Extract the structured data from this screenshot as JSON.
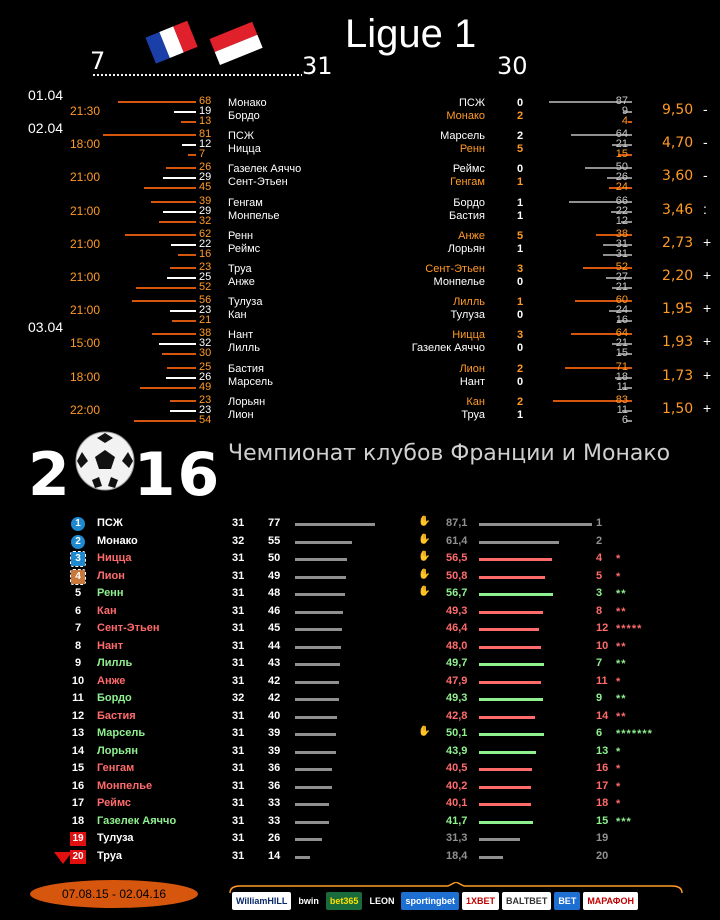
{
  "header": {
    "title": "Ligue 1",
    "round_left": "7",
    "round_mid": "31",
    "round_right": "30",
    "flag_icons": [
      "france-flag-icon",
      "monaco-flag-icon"
    ]
  },
  "dates": [
    {
      "label": "01.04",
      "row": 0
    },
    {
      "label": "02.04",
      "row": 1
    },
    {
      "label": "03.04",
      "row": 7
    }
  ],
  "matches": [
    {
      "time": "21:30",
      "home": "Монако",
      "away": "Бордо",
      "l": [
        "68",
        "19",
        "13"
      ],
      "home_r": "ПСЖ",
      "away_r": "Монако",
      "sh": "0",
      "sa": "2",
      "hl_home": false,
      "hl_away": true,
      "r": [
        "87",
        "9",
        "4"
      ],
      "odd": "9,50",
      "sign": "-"
    },
    {
      "time": "18:00",
      "home": "ПСЖ",
      "away": "Ницца",
      "l": [
        "81",
        "12",
        "7"
      ],
      "home_r": "Марсель",
      "away_r": "Ренн",
      "sh": "2",
      "sa": "5",
      "hl_home": false,
      "hl_away": true,
      "r": [
        "64",
        "21",
        "15"
      ],
      "odd": "4,70",
      "sign": "-"
    },
    {
      "time": "21:00",
      "home": "Газелек Аяччо",
      "away": "Сент-Этьен",
      "l": [
        "26",
        "29",
        "45"
      ],
      "home_r": "Реймс",
      "away_r": "Генгам",
      "sh": "0",
      "sa": "1",
      "hl_home": false,
      "hl_away": true,
      "r": [
        "50",
        "26",
        "24"
      ],
      "odd": "3,60",
      "sign": "-"
    },
    {
      "time": "21:00",
      "home": "Генгам",
      "away": "Монпелье",
      "l": [
        "39",
        "29",
        "32"
      ],
      "home_r": "Бордо",
      "away_r": "Бастия",
      "sh": "1",
      "sa": "1",
      "hl_home": false,
      "hl_away": false,
      "r": [
        "66",
        "22",
        "12"
      ],
      "odd": "3,46",
      "sign": ":"
    },
    {
      "time": "21:00",
      "home": "Ренн",
      "away": "Реймс",
      "l": [
        "62",
        "22",
        "16"
      ],
      "home_r": "Анже",
      "away_r": "Лорьян",
      "sh": "5",
      "sa": "1",
      "hl_home": true,
      "hl_away": false,
      "r": [
        "38",
        "31",
        "31"
      ],
      "odd": "2,73",
      "sign": "+"
    },
    {
      "time": "21:00",
      "home": "Труа",
      "away": "Анже",
      "l": [
        "23",
        "25",
        "52"
      ],
      "home_r": "Сент-Этьен",
      "away_r": "Монпелье",
      "sh": "3",
      "sa": "0",
      "hl_home": true,
      "hl_away": false,
      "r": [
        "52",
        "27",
        "21"
      ],
      "odd": "2,20",
      "sign": "+"
    },
    {
      "time": "21:00",
      "home": "Тулуза",
      "away": "Кан",
      "l": [
        "56",
        "23",
        "21"
      ],
      "home_r": "Лилль",
      "away_r": "Тулуза",
      "sh": "1",
      "sa": "0",
      "hl_home": true,
      "hl_away": false,
      "r": [
        "60",
        "24",
        "16"
      ],
      "odd": "1,95",
      "sign": "+"
    },
    {
      "time": "15:00",
      "home": "Нант",
      "away": "Лилль",
      "l": [
        "38",
        "32",
        "30"
      ],
      "home_r": "Ницца",
      "away_r": "Газелек Аяччо",
      "sh": "3",
      "sa": "0",
      "hl_home": true,
      "hl_away": false,
      "r": [
        "64",
        "21",
        "15"
      ],
      "odd": "1,93",
      "sign": "+"
    },
    {
      "time": "18:00",
      "home": "Бастия",
      "away": "Марсель",
      "l": [
        "25",
        "26",
        "49"
      ],
      "home_r": "Лион",
      "away_r": "Нант",
      "sh": "2",
      "sa": "0",
      "hl_home": true,
      "hl_away": false,
      "r": [
        "71",
        "18",
        "11"
      ],
      "odd": "1,73",
      "sign": "+"
    },
    {
      "time": "22:00",
      "home": "Лорьян",
      "away": "Лион",
      "l": [
        "23",
        "23",
        "54"
      ],
      "home_r": "Кан",
      "away_r": "Труа",
      "sh": "2",
      "sa": "1",
      "hl_home": true,
      "hl_away": false,
      "r": [
        "83",
        "11",
        "6"
      ],
      "odd": "1,50",
      "sign": "+"
    }
  ],
  "banner": {
    "year": "2016",
    "subtitle": "Чемпионат клубов Франции и Монако",
    "ball_icon": "soccer-ball-icon"
  },
  "table": [
    {
      "pos": "1",
      "team": "ПСЖ",
      "g": "31",
      "pts": "77",
      "thumb": true,
      "pct": "87,1",
      "rank": "1",
      "stars": "",
      "color": "#ffffff",
      "pct_color": "#909090",
      "badge": "#1e88d0"
    },
    {
      "pos": "2",
      "team": "Монако",
      "g": "32",
      "pts": "55",
      "thumb": true,
      "pct": "61,4",
      "rank": "2",
      "stars": "",
      "color": "#ffffff",
      "pct_color": "#909090",
      "badge": "#1e88d0"
    },
    {
      "pos": "3",
      "team": "Ницца",
      "g": "31",
      "pts": "50",
      "thumb": true,
      "pct": "56,5",
      "rank": "4",
      "stars": "*",
      "color": "#ff6b6b",
      "pct_color": "#ff6b6b",
      "badge": "#1e88d0"
    },
    {
      "pos": "4",
      "team": "Лион",
      "g": "31",
      "pts": "49",
      "thumb": true,
      "pct": "50,8",
      "rank": "5",
      "stars": "*",
      "color": "#ff6b6b",
      "pct_color": "#ff6b6b",
      "badge": "#c8783a"
    },
    {
      "pos": "5",
      "team": "Ренн",
      "g": "31",
      "pts": "48",
      "thumb": true,
      "pct": "56,7",
      "rank": "3",
      "stars": "**",
      "color": "#8ff08f",
      "pct_color": "#8ff08f",
      "badge": ""
    },
    {
      "pos": "6",
      "team": "Кан",
      "g": "31",
      "pts": "46",
      "thumb": false,
      "pct": "49,3",
      "rank": "8",
      "stars": "**",
      "color": "#ff6b6b",
      "pct_color": "#ff6b6b",
      "badge": ""
    },
    {
      "pos": "7",
      "team": "Сент-Этьен",
      "g": "31",
      "pts": "45",
      "thumb": false,
      "pct": "46,4",
      "rank": "12",
      "stars": "*****",
      "color": "#ff6b6b",
      "pct_color": "#ff6b6b",
      "badge": ""
    },
    {
      "pos": "8",
      "team": "Нант",
      "g": "31",
      "pts": "44",
      "thumb": false,
      "pct": "48,0",
      "rank": "10",
      "stars": "**",
      "color": "#ff6b6b",
      "pct_color": "#ff6b6b",
      "badge": ""
    },
    {
      "pos": "9",
      "team": "Лилль",
      "g": "31",
      "pts": "43",
      "thumb": false,
      "pct": "49,7",
      "rank": "7",
      "stars": "**",
      "color": "#8ff08f",
      "pct_color": "#8ff08f",
      "badge": ""
    },
    {
      "pos": "10",
      "team": "Анже",
      "g": "31",
      "pts": "42",
      "thumb": false,
      "pct": "47,9",
      "rank": "11",
      "stars": "*",
      "color": "#ff6b6b",
      "pct_color": "#ff6b6b",
      "badge": ""
    },
    {
      "pos": "11",
      "team": "Бордо",
      "g": "32",
      "pts": "42",
      "thumb": false,
      "pct": "49,3",
      "rank": "9",
      "stars": "**",
      "color": "#8ff08f",
      "pct_color": "#8ff08f",
      "badge": ""
    },
    {
      "pos": "12",
      "team": "Бастия",
      "g": "31",
      "pts": "40",
      "thumb": false,
      "pct": "42,8",
      "rank": "14",
      "stars": "**",
      "color": "#ff6b6b",
      "pct_color": "#ff6b6b",
      "badge": ""
    },
    {
      "pos": "13",
      "team": "Марсель",
      "g": "31",
      "pts": "39",
      "thumb": true,
      "pct": "50,1",
      "rank": "6",
      "stars": "*******",
      "color": "#8ff08f",
      "pct_color": "#8ff08f",
      "badge": ""
    },
    {
      "pos": "14",
      "team": "Лорьян",
      "g": "31",
      "pts": "39",
      "thumb": false,
      "pct": "43,9",
      "rank": "13",
      "stars": "*",
      "color": "#8ff08f",
      "pct_color": "#8ff08f",
      "badge": ""
    },
    {
      "pos": "15",
      "team": "Генгам",
      "g": "31",
      "pts": "36",
      "thumb": false,
      "pct": "40,5",
      "rank": "16",
      "stars": "*",
      "color": "#ff6b6b",
      "pct_color": "#ff6b6b",
      "badge": ""
    },
    {
      "pos": "16",
      "team": "Монпелье",
      "g": "31",
      "pts": "36",
      "thumb": false,
      "pct": "40,2",
      "rank": "17",
      "stars": "*",
      "color": "#ff6b6b",
      "pct_color": "#ff6b6b",
      "badge": ""
    },
    {
      "pos": "17",
      "team": "Реймс",
      "g": "31",
      "pts": "33",
      "thumb": false,
      "pct": "40,1",
      "rank": "18",
      "stars": "*",
      "color": "#ff6b6b",
      "pct_color": "#ff6b6b",
      "badge": ""
    },
    {
      "pos": "18",
      "team": "Газелек Аяччо",
      "g": "31",
      "pts": "33",
      "thumb": false,
      "pct": "41,7",
      "rank": "15",
      "stars": "***",
      "color": "#8ff08f",
      "pct_color": "#8ff08f",
      "badge": ""
    },
    {
      "pos": "19",
      "team": "Тулуза",
      "g": "31",
      "pts": "26",
      "thumb": false,
      "pct": "31,3",
      "rank": "19",
      "stars": "",
      "color": "#ffffff",
      "pct_color": "#909090",
      "badge": "#e01010"
    },
    {
      "pos": "20",
      "team": "Труа",
      "g": "31",
      "pts": "14",
      "thumb": false,
      "pct": "18,4",
      "rank": "20",
      "stars": "",
      "color": "#ffffff",
      "pct_color": "#909090",
      "badge": "#e01010"
    }
  ],
  "footer": {
    "period": "07.08.15 - 02.04.16",
    "sponsors": [
      {
        "name": "WilliamHILL",
        "bg": "#ffffff",
        "fg": "#0a2a6a"
      },
      {
        "name": "bwin",
        "bg": "#000000",
        "fg": "#ffffff"
      },
      {
        "name": "bet365",
        "bg": "#1a6b3c",
        "fg": "#ffe100"
      },
      {
        "name": "LEON",
        "bg": "#000000",
        "fg": "#ffffff"
      },
      {
        "name": "sportingbet",
        "bg": "#1d6fd1",
        "fg": "#ffffff"
      },
      {
        "name": "1XBET",
        "bg": "#ffffff",
        "fg": "#c00000"
      },
      {
        "name": "BALTBET",
        "bg": "#ffffff",
        "fg": "#333333"
      },
      {
        "name": "BET",
        "bg": "#1d6fd1",
        "fg": "#ffffff"
      },
      {
        "name": "МАРАФОН",
        "bg": "#ffffff",
        "fg": "#c00000"
      }
    ]
  }
}
